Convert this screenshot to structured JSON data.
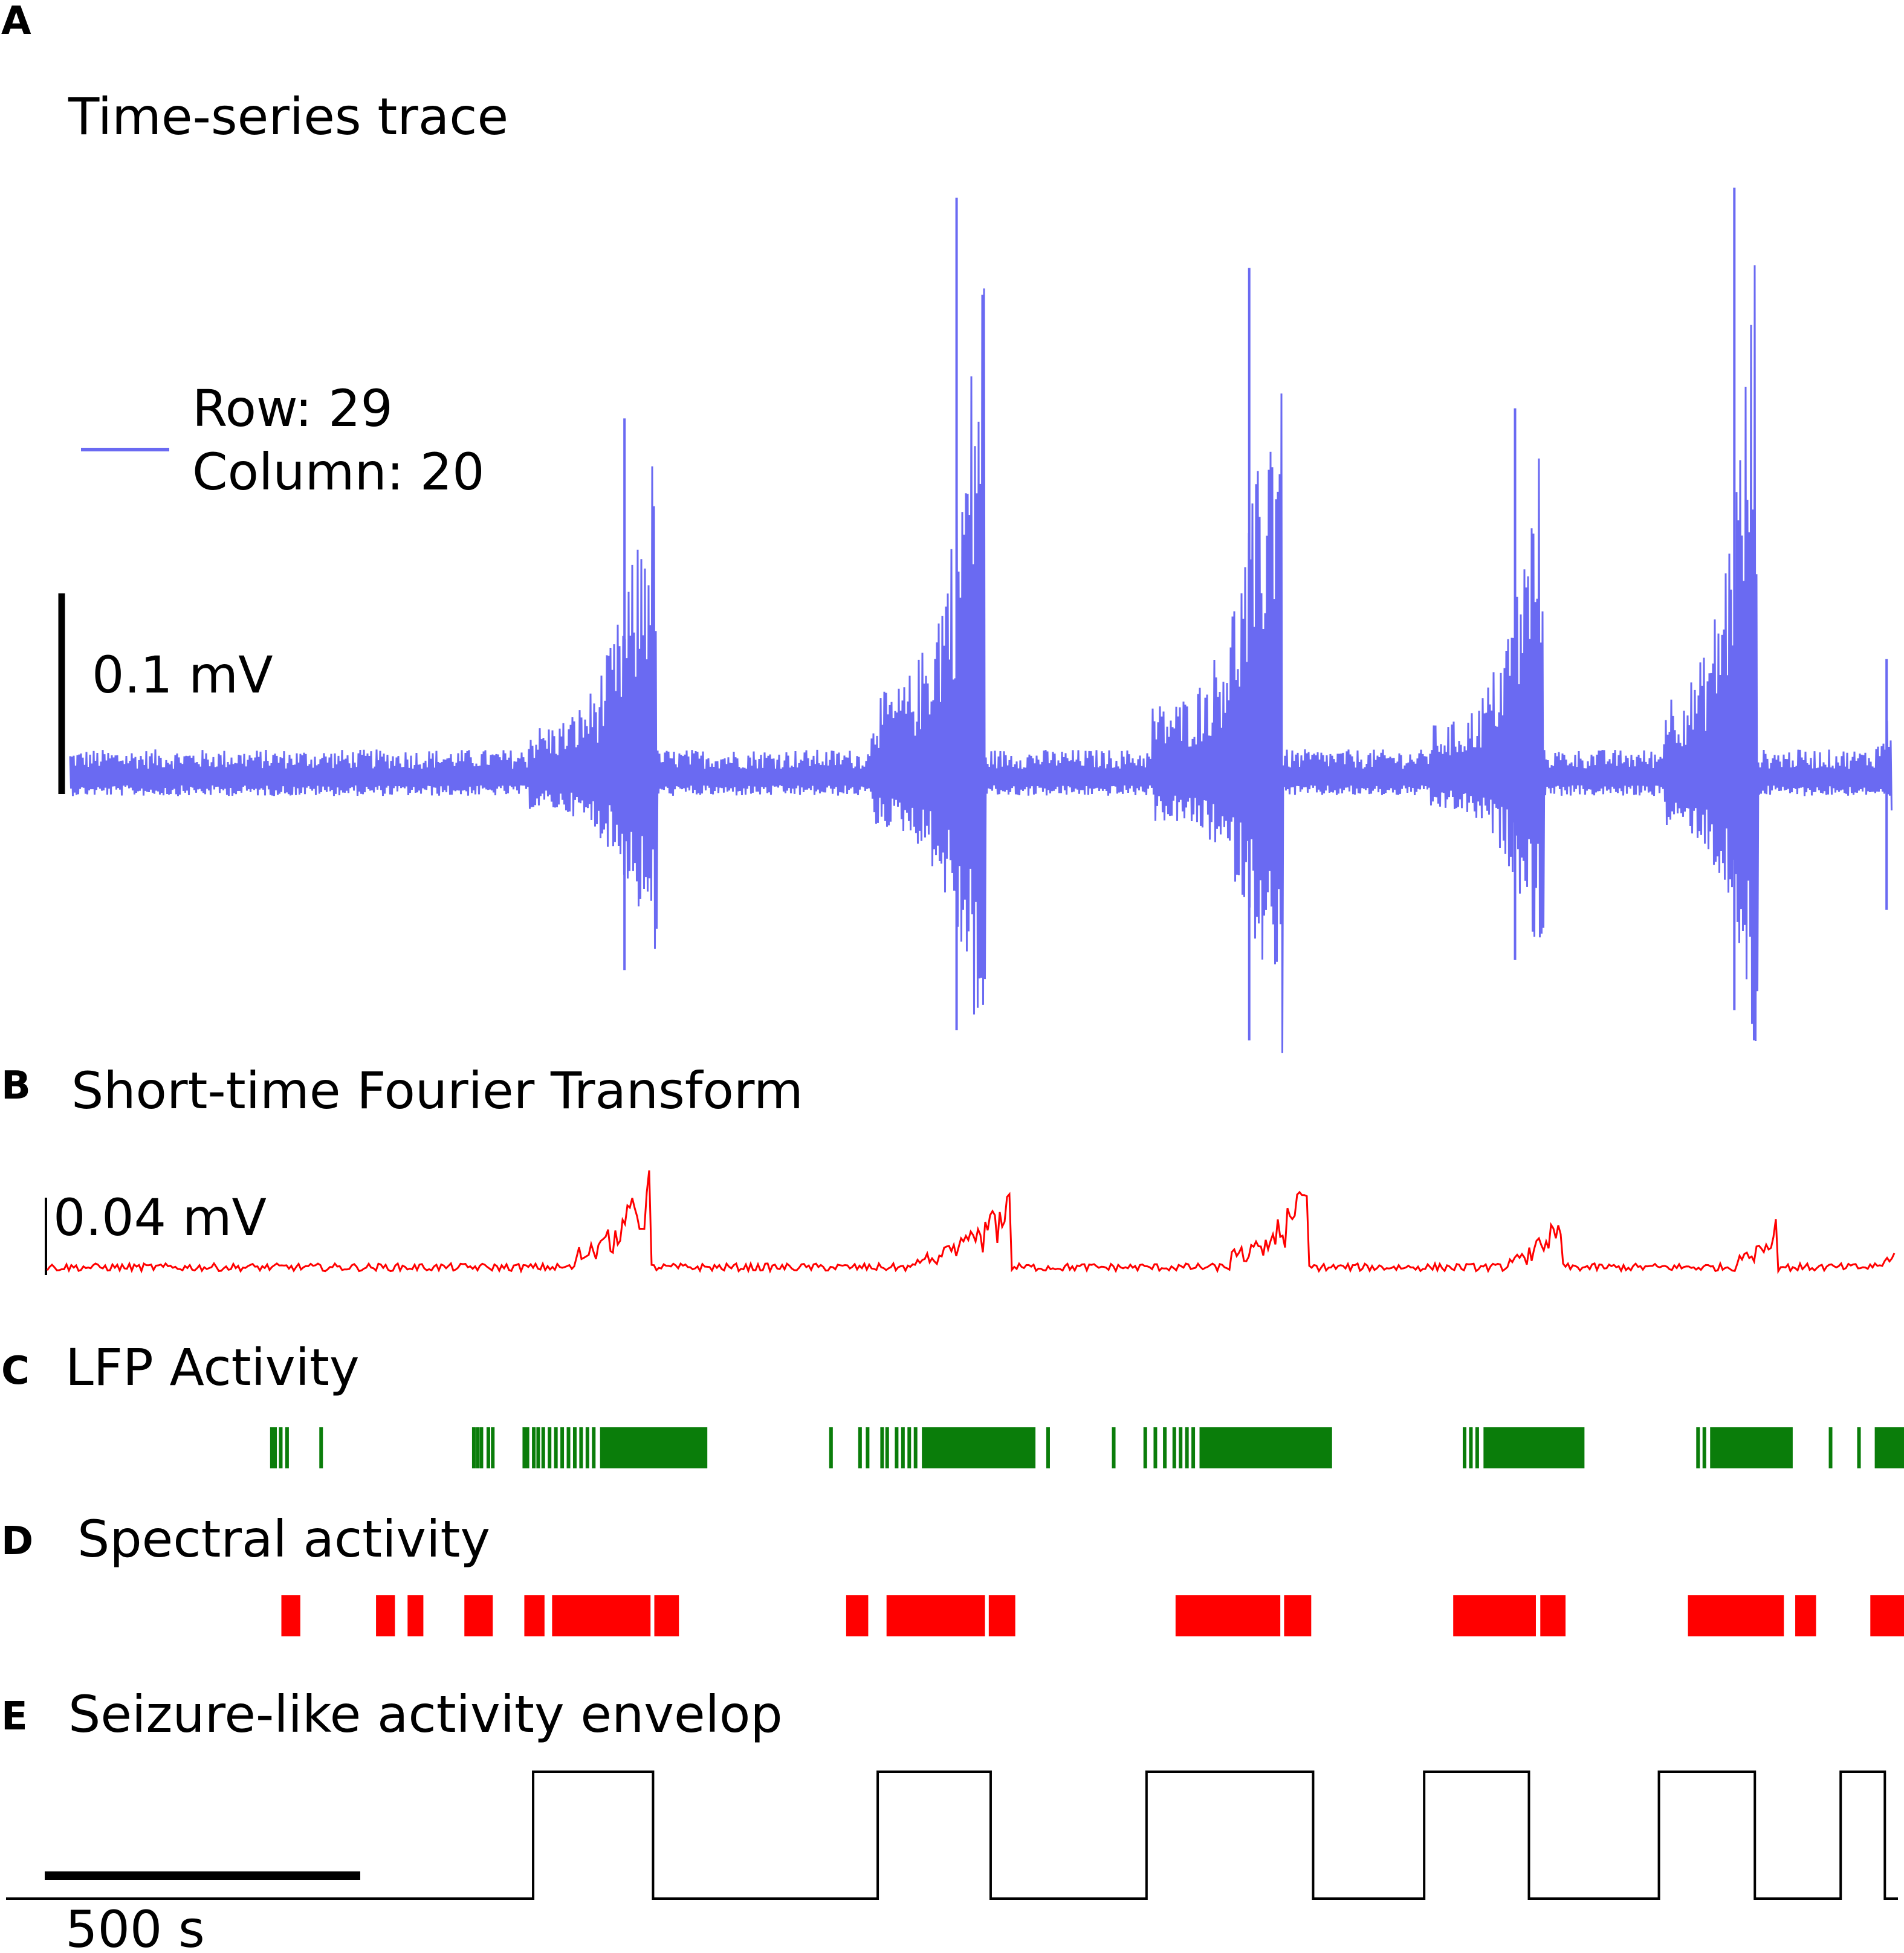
{
  "panels": {
    "A": {
      "letter": "A",
      "title": "Time-series trace"
    },
    "B": {
      "letter": "B",
      "title": "Short-time Fourier Transform"
    },
    "C": {
      "letter": "C",
      "title": "LFP  Activity"
    },
    "D": {
      "letter": "D",
      "title": "Spectral activity"
    },
    "E": {
      "letter": "E",
      "title": "Seizure-like activity envelop"
    }
  },
  "legend": {
    "row_line": "Row: 29",
    "col_line": "Column: 20"
  },
  "scalebars": {
    "trace": "0.1 mV",
    "stft": "0.04 mV",
    "time": "500 s"
  },
  "colors": {
    "trace": "#6a6af2",
    "stft": "#ff0000",
    "lfp": "#0a7d0a",
    "spectral": "#ff0000",
    "envelope": "#000000"
  },
  "chart_data": [
    {
      "panel": "A",
      "type": "line",
      "title": "Time-series trace",
      "series": [
        {
          "name": "Row: 29 Column: 20"
        }
      ],
      "x_range_s": [
        0,
        2940
      ],
      "y_unit": "mV",
      "baseline_noise_mV": 0.015,
      "burst_clusters": [
        {
          "start": 765,
          "end": 970,
          "peak_pos_mV": 0.18,
          "peak_neg_mV": -0.095
        },
        {
          "start": 1310,
          "end": 1490,
          "peak_pos_mV": 0.29,
          "peak_neg_mV": -0.125
        },
        {
          "start": 1755,
          "end": 1960,
          "peak_pos_mV": 0.255,
          "peak_neg_mV": -0.13
        },
        {
          "start": 2195,
          "end": 2375,
          "peak_pos_mV": 0.185,
          "peak_neg_mV": -0.09
        },
        {
          "start": 2565,
          "end": 2715,
          "peak_pos_mV": 0.295,
          "peak_neg_mV": -0.115
        },
        {
          "start": 2855,
          "end": 2940,
          "peak_pos_mV": 0.06,
          "peak_neg_mV": -0.065
        }
      ]
    },
    {
      "panel": "B",
      "type": "line",
      "title": "Short-time Fourier Transform",
      "y_unit": "mV",
      "baseline_mV": 0.004,
      "peaks": [
        {
          "start": 840,
          "end": 960,
          "peak_mV": 0.06
        },
        {
          "start": 1380,
          "end": 1530,
          "peak_mV": 0.045
        },
        {
          "start": 1880,
          "end": 2000,
          "peak_mV": 0.055
        },
        {
          "start": 2320,
          "end": 2405,
          "peak_mV": 0.04
        },
        {
          "start": 2680,
          "end": 2745,
          "peak_mV": 0.04
        },
        {
          "start": 2890,
          "end": 2940,
          "peak_mV": 0.02
        }
      ]
    },
    {
      "panel": "C",
      "type": "event_raster",
      "title": "LFP  Activity",
      "dense_intervals": [
        [
          880,
          1050
        ],
        [
          1390,
          1570
        ],
        [
          1830,
          2040
        ],
        [
          2280,
          2440
        ],
        [
          2640,
          2770
        ],
        [
          2900,
          2975
        ]
      ],
      "sparse_events": [
        360,
        365,
        374,
        384,
        438,
        680,
        686,
        692,
        703,
        710,
        760,
        765,
        775,
        782,
        790,
        800,
        810,
        820,
        830,
        840,
        850,
        860,
        870,
        1246,
        1292,
        1304,
        1327,
        1335,
        1350,
        1360,
        1370,
        1380,
        1560,
        1590,
        1694,
        1744,
        1760,
        1775,
        1790,
        1800,
        1810,
        1820,
        2250,
        2260,
        2270,
        2620,
        2630,
        2642,
        2830,
        2875
      ]
    },
    {
      "panel": "D",
      "type": "intervals",
      "title": "Spectral activity",
      "intervals": [
        [
          375,
          405
        ],
        [
          525,
          555
        ],
        [
          575,
          600
        ],
        [
          665,
          710
        ],
        [
          760,
          792
        ],
        [
          804,
          960
        ],
        [
          966,
          1005
        ],
        [
          1270,
          1305
        ],
        [
          1334,
          1490
        ],
        [
          1496,
          1538
        ],
        [
          1792,
          1958
        ],
        [
          1964,
          2007
        ],
        [
          2232,
          2363
        ],
        [
          2370,
          2410
        ],
        [
          2604,
          2756
        ],
        [
          2774,
          2807
        ],
        [
          2893,
          2978
        ]
      ]
    },
    {
      "panel": "E",
      "type": "step",
      "title": "Seizure-like activity envelop",
      "low_high": [
        0,
        1
      ],
      "high_intervals": [
        [
          774,
          964
        ],
        [
          1320,
          1499
        ],
        [
          1746,
          2010
        ],
        [
          2186,
          2352
        ],
        [
          2558,
          2710
        ],
        [
          2846,
          2916
        ]
      ]
    }
  ]
}
